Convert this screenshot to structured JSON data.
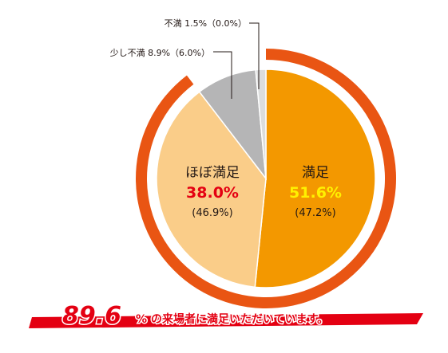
{
  "chart_data": {
    "type": "pie",
    "categories": [
      "満足",
      "ほぼ満足",
      "少し不満",
      "不満"
    ],
    "values": [
      51.6,
      38.0,
      8.9,
      1.5
    ],
    "previous_values": [
      47.2,
      46.9,
      6.0,
      0.0
    ],
    "labels": {
      "satisfied": {
        "name": "満足",
        "pct": "51.6%",
        "prev": "(47.2%)"
      },
      "mostly": {
        "name": "ほぼ満足",
        "pct": "38.0%",
        "prev": "(46.9%)"
      },
      "slightly": {
        "text": "少し不満 8.9%（6.0%）"
      },
      "unsatisfied": {
        "text": "不満 1.5%（0.0%）"
      }
    },
    "colors": {
      "satisfied": "#f39800",
      "mostly": "#facd89",
      "slightly": "#b5b5b6",
      "unsatisfied": "#dcdddd",
      "ring": "#e95513",
      "pct_satisfied": "#fff100",
      "pct_mostly": "#e40012"
    },
    "ring_value": 89.6
  },
  "headline": {
    "value": "89.6",
    "unit": "%",
    "text": "の来場者に満足いただいています。"
  }
}
